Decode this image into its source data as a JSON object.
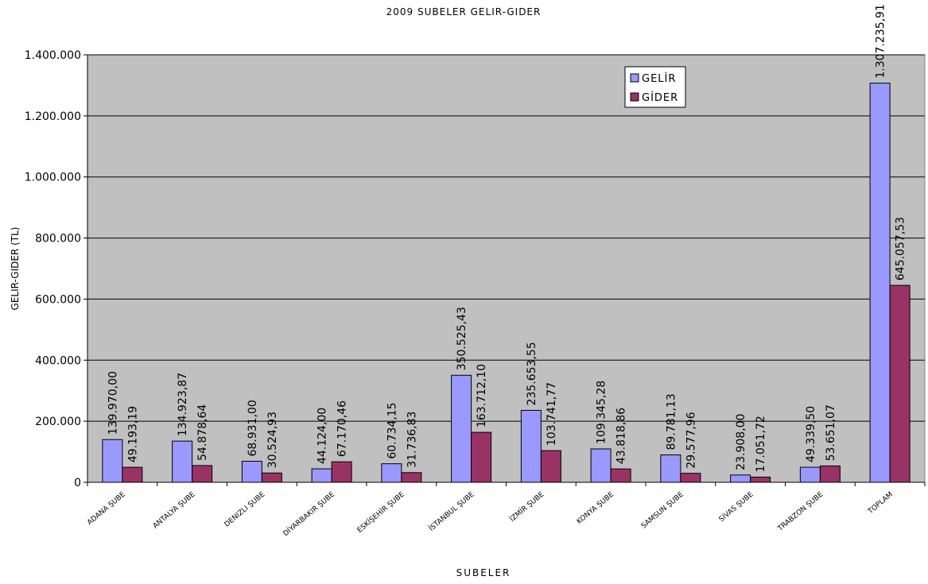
{
  "chart_data": {
    "type": "bar",
    "title": "2009 SUBELER GELIR-GIDER",
    "xlabel": "SUBELER",
    "ylabel": "GELIR-GIDER (TL)",
    "ylim": [
      0,
      1400000
    ],
    "yticks": [
      0,
      200000,
      400000,
      600000,
      800000,
      1000000,
      1200000,
      1400000
    ],
    "ytick_labels": [
      "0",
      "200.000",
      "400.000",
      "600.000",
      "800.000",
      "1.000.000",
      "1.200.000",
      "1.400.000"
    ],
    "grid": true,
    "legend_position": "top-right",
    "categories": [
      "ADANA ŞUBE",
      "ANTALYA ŞUBE",
      "DENIZLI ŞUBE",
      "DİYARBAKIR ŞUBE",
      "ESKİŞEHİR ŞUBE",
      "İSTANBUL ŞUBE",
      "İZMİR ŞUBE",
      "KONYA ŞUBE",
      "SAMSUN ŞUBE",
      "SIVAS ŞUBE",
      "TRABZON ŞUBE",
      "TOPLAM"
    ],
    "series": [
      {
        "name": "GELİR",
        "color": "#9999FF",
        "values": [
          139970.0,
          134923.87,
          68931.0,
          44124.0,
          60734.15,
          350525.43,
          235653.55,
          109345.28,
          89781.13,
          23908.0,
          49339.5,
          1307235.91
        ],
        "labels": [
          "139.970,00",
          "134.923,87",
          "68.931,00",
          "44.124,00",
          "60.734,15",
          "350.525,43",
          "235.653,55",
          "109.345,28",
          "89.781,13",
          "23.908,00",
          "49.339,50",
          "1.307.235,91"
        ]
      },
      {
        "name": "GİDER",
        "color": "#993366",
        "values": [
          49193.19,
          54878.64,
          30524.93,
          67170.46,
          31736.83,
          163712.1,
          103741.77,
          43818.86,
          29577.96,
          17051.72,
          53651.07,
          645057.53
        ],
        "labels": [
          "49.193,19",
          "54.878,64",
          "30.524,93",
          "67.170,46",
          "31.736,83",
          "163.712,10",
          "103.741,77",
          "43.818,86",
          "29.577,96",
          "17.051,72",
          "53.651,07",
          "645.057,53"
        ]
      }
    ],
    "plot_background": "#C0C0C0"
  }
}
